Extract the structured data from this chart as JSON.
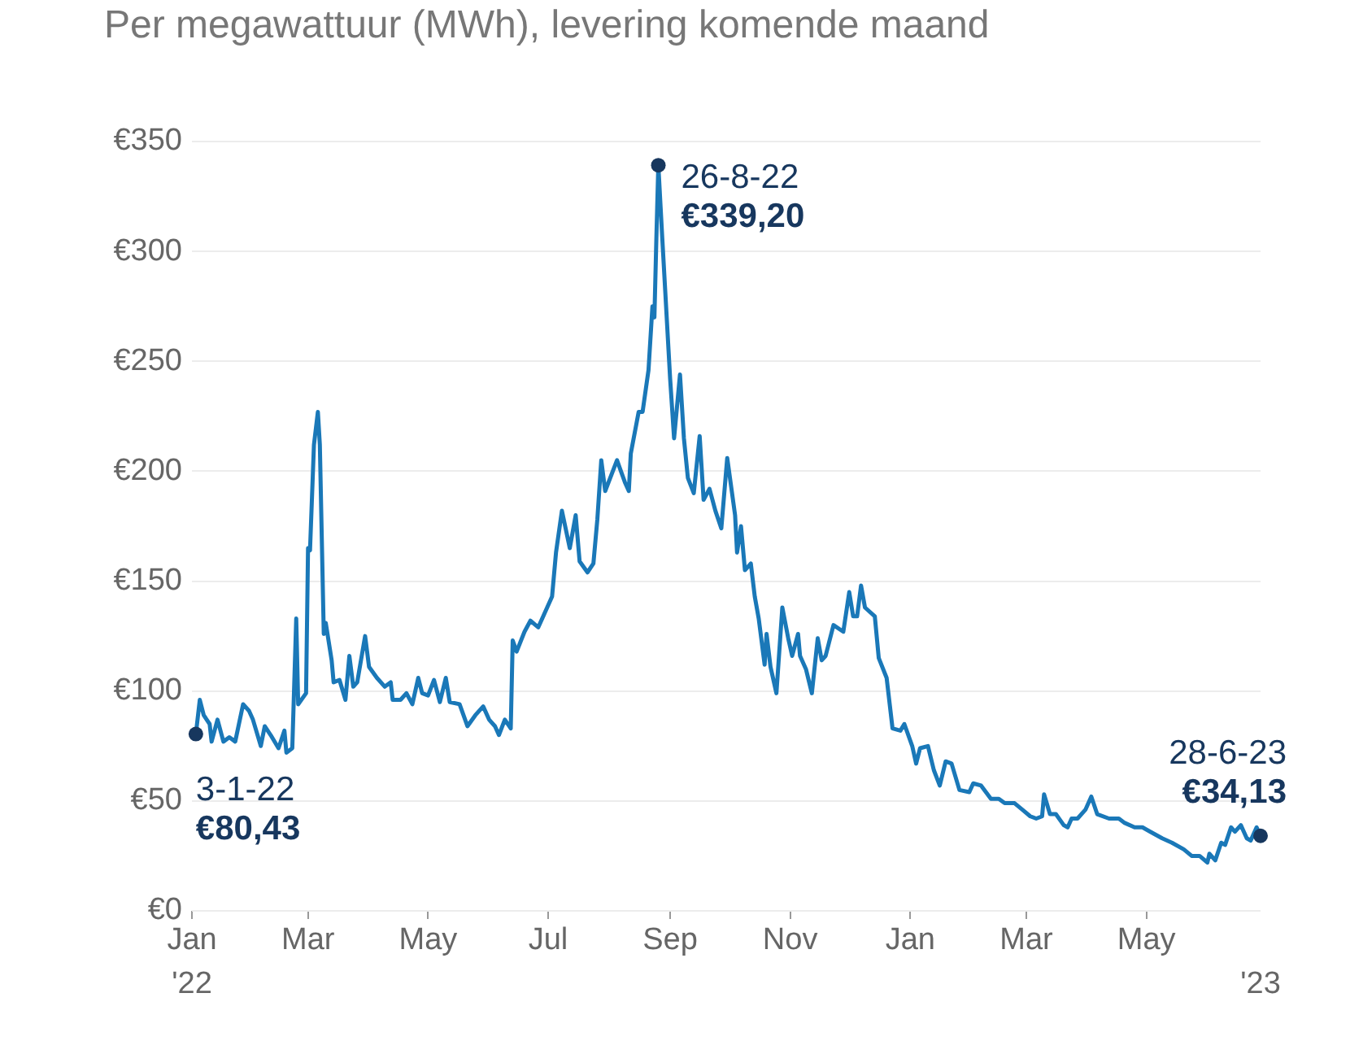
{
  "chart_data": {
    "type": "line",
    "title": "Per megawattuur (MWh), levering komende maand",
    "xlim": [
      "2022-01-01",
      "2023-06-28"
    ],
    "x2lim": [
      "2022-01-01",
      "2023-06-28"
    ],
    "x2ticks": [
      {
        "value": "2022-01-01",
        "label": "'22"
      },
      {
        "value": "2023-06-28",
        "label": "'23"
      }
    ],
    "xticks": [
      {
        "value": "2022-01-01",
        "label": "Jan"
      },
      {
        "value": "2022-03-01",
        "label": "Mar"
      },
      {
        "value": "2022-05-01",
        "label": "May"
      },
      {
        "value": "2022-07-01",
        "label": "Jul"
      },
      {
        "value": "2022-09-01",
        "label": "Sep"
      },
      {
        "value": "2022-11-01",
        "label": "Nov"
      },
      {
        "value": "2023-01-01",
        "label": "Jan"
      },
      {
        "value": "2023-03-01",
        "label": "Mar"
      },
      {
        "value": "2023-05-01",
        "label": "May"
      }
    ],
    "ylim": [
      0,
      350
    ],
    "yticks": [
      {
        "value": 0,
        "label": "€0"
      },
      {
        "value": 50,
        "label": "€50"
      },
      {
        "value": 100,
        "label": "€100"
      },
      {
        "value": 150,
        "label": "€150"
      },
      {
        "value": 200,
        "label": "€200"
      },
      {
        "value": 250,
        "label": "€250"
      },
      {
        "value": 300,
        "label": "€300"
      },
      {
        "value": 350,
        "label": "€350"
      }
    ],
    "grid": "y",
    "legend": false,
    "series": [
      {
        "color": "#1a78b8",
        "x": [
          "2022-01-03",
          "2022-01-05",
          "2022-01-07",
          "2022-01-10",
          "2022-01-11",
          "2022-01-14",
          "2022-01-17",
          "2022-01-20",
          "2022-01-23",
          "2022-01-27",
          "2022-01-30",
          "2022-02-01",
          "2022-02-05",
          "2022-02-07",
          "2022-02-10",
          "2022-02-14",
          "2022-02-17",
          "2022-02-18",
          "2022-02-21",
          "2022-02-23",
          "2022-02-24",
          "2022-02-28",
          "2022-03-01",
          "2022-03-02",
          "2022-03-04",
          "2022-03-06",
          "2022-03-07",
          "2022-03-09",
          "2022-03-10",
          "2022-03-13",
          "2022-03-14",
          "2022-03-17",
          "2022-03-20",
          "2022-03-22",
          "2022-03-24",
          "2022-03-26",
          "2022-03-30",
          "2022-04-01",
          "2022-04-05",
          "2022-04-09",
          "2022-04-12",
          "2022-04-13",
          "2022-04-17",
          "2022-04-20",
          "2022-04-23",
          "2022-04-26",
          "2022-04-28",
          "2022-05-01",
          "2022-05-04",
          "2022-05-07",
          "2022-05-10",
          "2022-05-12",
          "2022-05-17",
          "2022-05-21",
          "2022-05-25",
          "2022-05-29",
          "2022-06-01",
          "2022-06-04",
          "2022-06-06",
          "2022-06-09",
          "2022-06-12",
          "2022-06-13",
          "2022-06-15",
          "2022-06-19",
          "2022-06-22",
          "2022-06-26",
          "2022-07-03",
          "2022-07-05",
          "2022-07-08",
          "2022-07-12",
          "2022-07-15",
          "2022-07-17",
          "2022-07-21",
          "2022-07-24",
          "2022-07-26",
          "2022-07-28",
          "2022-07-30",
          "2022-08-05",
          "2022-08-09",
          "2022-08-11",
          "2022-08-12",
          "2022-08-16",
          "2022-08-18",
          "2022-08-21",
          "2022-08-23",
          "2022-08-24",
          "2022-08-25",
          "2022-08-26",
          "2022-08-28",
          "2022-09-01",
          "2022-09-03",
          "2022-09-06",
          "2022-09-08",
          "2022-09-10",
          "2022-09-13",
          "2022-09-16",
          "2022-09-18",
          "2022-09-21",
          "2022-09-24",
          "2022-09-27",
          "2022-09-30",
          "2022-10-04",
          "2022-10-05",
          "2022-10-07",
          "2022-10-09",
          "2022-10-12",
          "2022-10-14",
          "2022-10-16",
          "2022-10-19",
          "2022-10-20",
          "2022-10-22",
          "2022-10-25",
          "2022-10-28",
          "2022-10-31",
          "2022-11-02",
          "2022-11-05",
          "2022-11-06",
          "2022-11-09",
          "2022-11-12",
          "2022-11-15",
          "2022-11-17",
          "2022-11-19",
          "2022-11-23",
          "2022-11-28",
          "2022-12-01",
          "2022-12-03",
          "2022-12-05",
          "2022-12-07",
          "2022-12-09",
          "2022-12-14",
          "2022-12-16",
          "2022-12-20",
          "2022-12-23",
          "2022-12-27",
          "2022-12-29",
          "2023-01-02",
          "2023-01-04",
          "2023-01-06",
          "2023-01-10",
          "2023-01-13",
          "2023-01-16",
          "2023-01-19",
          "2023-01-22",
          "2023-01-26",
          "2023-01-31",
          "2023-02-02",
          "2023-02-06",
          "2023-02-11",
          "2023-02-15",
          "2023-02-18",
          "2023-02-23",
          "2023-02-27",
          "2023-03-03",
          "2023-03-06",
          "2023-03-09",
          "2023-03-10",
          "2023-03-13",
          "2023-03-16",
          "2023-03-20",
          "2023-03-22",
          "2023-03-24",
          "2023-03-27",
          "2023-03-31",
          "2023-04-03",
          "2023-04-06",
          "2023-04-12",
          "2023-04-17",
          "2023-04-20",
          "2023-04-25",
          "2023-04-29",
          "2023-05-03",
          "2023-05-09",
          "2023-05-14",
          "2023-05-20",
          "2023-05-24",
          "2023-05-28",
          "2023-06-01",
          "2023-06-02",
          "2023-06-05",
          "2023-06-08",
          "2023-06-10",
          "2023-06-13",
          "2023-06-15",
          "2023-06-18",
          "2023-06-21",
          "2023-06-23",
          "2023-06-26",
          "2023-06-28"
        ],
        "values": [
          80.43,
          96,
          89,
          85,
          77,
          87,
          77,
          79,
          77,
          94,
          91,
          87,
          75,
          84,
          80,
          74,
          82,
          72,
          74,
          133,
          94,
          99,
          165,
          164,
          212,
          227,
          212,
          126,
          131,
          114,
          104,
          105,
          96,
          116,
          102,
          104,
          125,
          111,
          106,
          102,
          104,
          96,
          96,
          99,
          94,
          106,
          99,
          98,
          105,
          95,
          106,
          95,
          94,
          84,
          89,
          93,
          87,
          84,
          80,
          87,
          83,
          123,
          118,
          127,
          132,
          129,
          143,
          163,
          182,
          165,
          180,
          159,
          154,
          158,
          178,
          205,
          191,
          205,
          195,
          191,
          208,
          227,
          227,
          246,
          275,
          270,
          306,
          339.2,
          306,
          242,
          215,
          244,
          215,
          197,
          190,
          216,
          187,
          192,
          182,
          174,
          206,
          180,
          163,
          175,
          155,
          158,
          143,
          133,
          112,
          126,
          111,
          99,
          138,
          124,
          116,
          126,
          116,
          110,
          99,
          124,
          114,
          116,
          130,
          127,
          145,
          134,
          134,
          148,
          138,
          134,
          115,
          106,
          83,
          82,
          85,
          75,
          67,
          74,
          75,
          64,
          57,
          68,
          67,
          55,
          54,
          58,
          57,
          51,
          51,
          49,
          49,
          46,
          43,
          42,
          43,
          53,
          44,
          44,
          39,
          38,
          42,
          42,
          46,
          52,
          44,
          42,
          42,
          40,
          38,
          38,
          36,
          33,
          31,
          28,
          25,
          25,
          22,
          26,
          23,
          31,
          30,
          38,
          36,
          39,
          33,
          32,
          38,
          34.13
        ]
      }
    ],
    "annotations": [
      {
        "text": "3-1-22\n€80,43",
        "x": "2022-01-03",
        "y": 80.43
      },
      {
        "text": "26-8-22\n€339,20",
        "x": "2022-08-26",
        "y": 339.2
      },
      {
        "text": "28-6-23\n€34,13",
        "x": "2023-06-28",
        "y": 34.13
      }
    ]
  }
}
